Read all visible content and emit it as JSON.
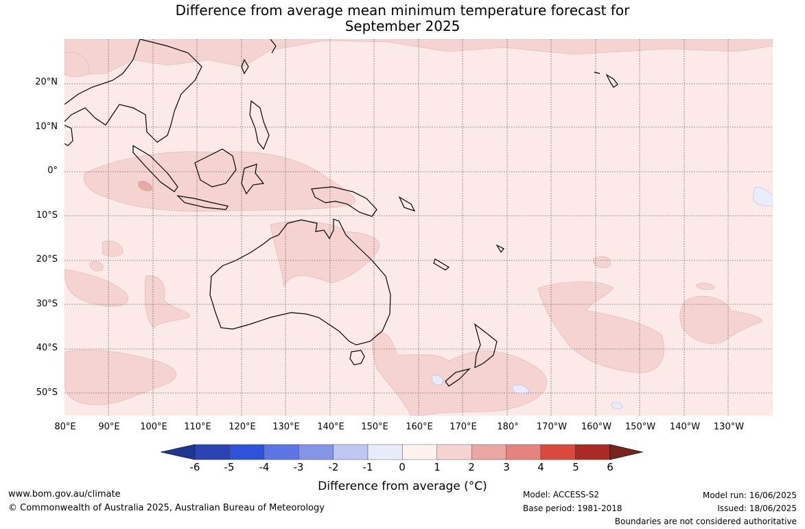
{
  "title": {
    "line1": "Difference from average mean minimum temperature forecast for",
    "line2": "September 2025"
  },
  "map": {
    "lat_labels": [
      "20°N",
      "10°N",
      "0°",
      "10°S",
      "20°S",
      "30°S",
      "40°S",
      "50°S"
    ],
    "lon_labels": [
      "80°E",
      "90°E",
      "100°E",
      "110°E",
      "120°E",
      "130°E",
      "140°E",
      "150°E",
      "160°E",
      "170°E",
      "180°",
      "170°W",
      "160°W",
      "150°W",
      "140°W",
      "130°W"
    ],
    "background_color": "#fbeae8",
    "anomaly_0_1_color": "#fbeae8",
    "anomaly_1_2_color": "#f5d3d0",
    "anomaly_2_3_color": "#eaa8a2",
    "negative_small_color": "#e8ecfb",
    "coastline_color": "#000000"
  },
  "colorbar": {
    "ticks": [
      "-6",
      "-5",
      "-4",
      "-3",
      "-2",
      "-1",
      "0",
      "1",
      "2",
      "3",
      "4",
      "5",
      "6"
    ],
    "colors": [
      "#1e3593",
      "#2a44b3",
      "#2f52dc",
      "#5b75e2",
      "#8495e6",
      "#bec6f2",
      "#e8ebfa",
      "#fdf2f0",
      "#f5d3d0",
      "#eaa8a2",
      "#e3857e",
      "#d94a3d",
      "#aa2b24",
      "#75241e"
    ],
    "label": "Difference from average (°C)"
  },
  "footer": {
    "website": "www.bom.gov.au/climate",
    "copyright": "© Commonwealth of Australia 2025, Australian Bureau of Meteorology",
    "model": "Model: ACCESS-S2",
    "base_period": "Base period: 1981-2018",
    "model_run": "Model run: 16/06/2025",
    "issued": "Issued: 18/06/2025",
    "disclaimer": "Boundaries are not considered authoritative"
  }
}
